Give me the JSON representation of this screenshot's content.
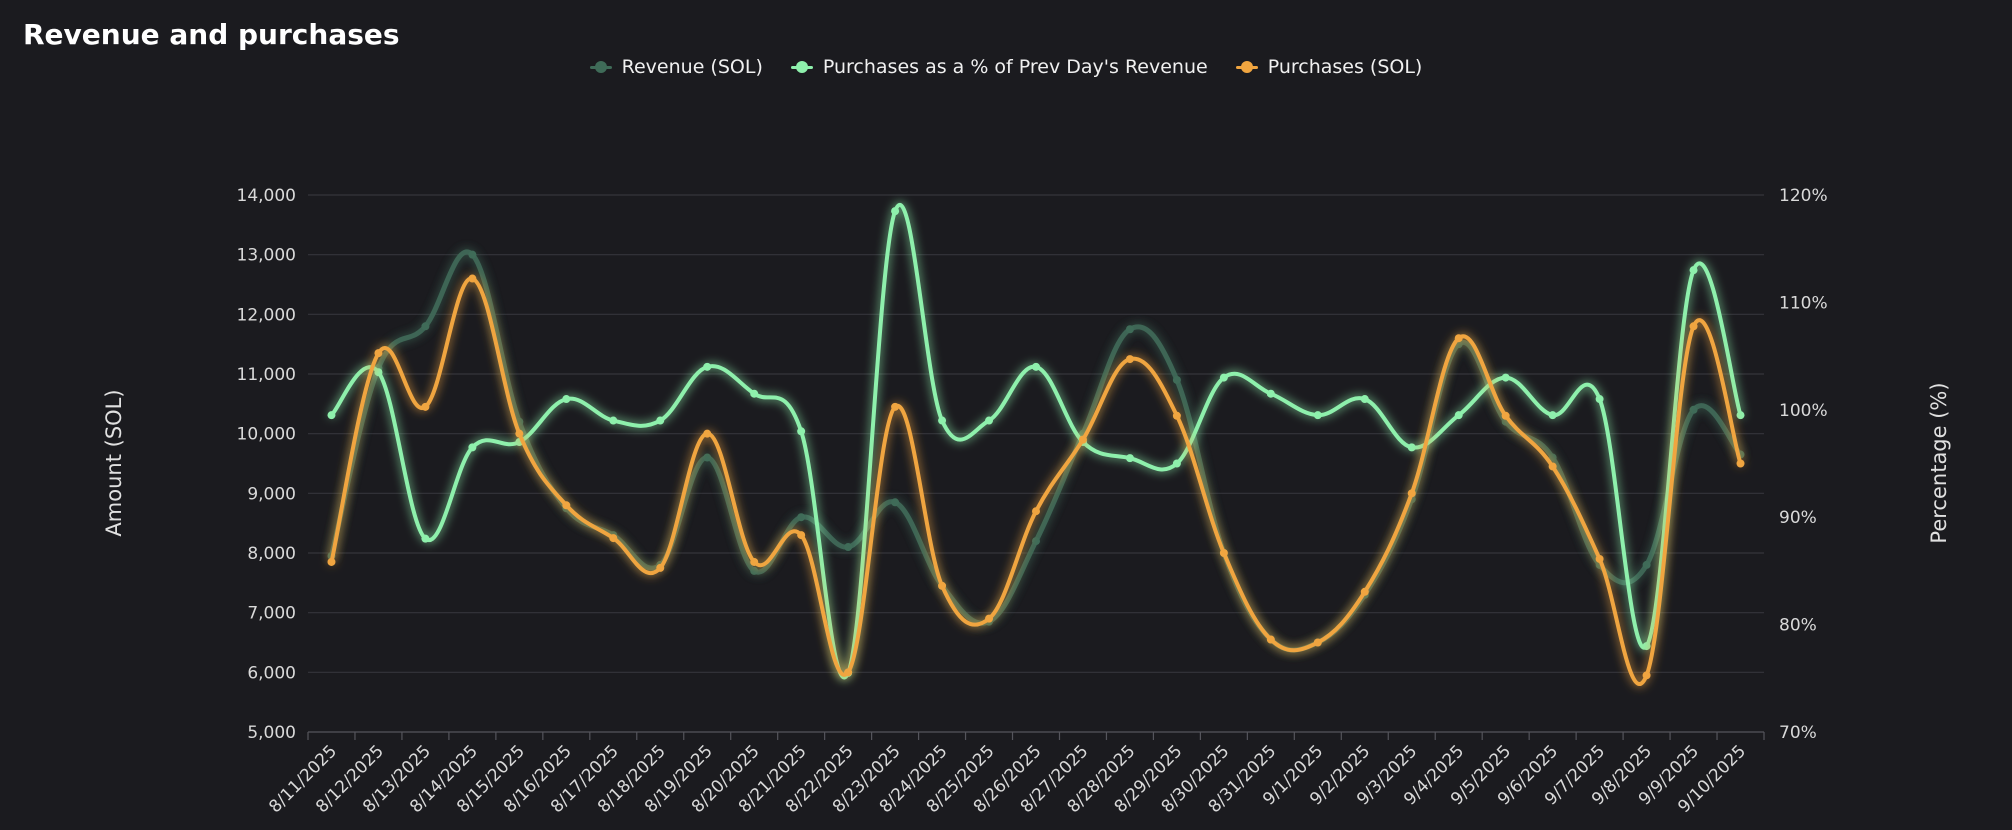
{
  "chart_data": {
    "type": "line",
    "title": "Revenue and purchases",
    "ylabel_left": "Amount (SOL)",
    "ylabel_right": "Percentage (%)",
    "ylim_left": [
      5000,
      14000
    ],
    "ylim_right": [
      70,
      120
    ],
    "yticks_left": [
      "5,000",
      "6,000",
      "7,000",
      "8,000",
      "9,000",
      "10,000",
      "11,000",
      "12,000",
      "13,000",
      "14,000"
    ],
    "yticks_right": [
      "70%",
      "80%",
      "90%",
      "100%",
      "110%",
      "120%"
    ],
    "grid": true,
    "legend_position": "top-center",
    "categories": [
      "8/11/2025",
      "8/12/2025",
      "8/13/2025",
      "8/14/2025",
      "8/15/2025",
      "8/16/2025",
      "8/17/2025",
      "8/18/2025",
      "8/19/2025",
      "8/20/2025",
      "8/21/2025",
      "8/22/2025",
      "8/23/2025",
      "8/24/2025",
      "8/25/2025",
      "8/26/2025",
      "8/27/2025",
      "8/28/2025",
      "8/29/2025",
      "8/30/2025",
      "8/31/2025",
      "9/1/2025",
      "9/2/2025",
      "9/3/2025",
      "9/4/2025",
      "9/5/2025",
      "9/6/2025",
      "9/7/2025",
      "9/8/2025",
      "9/9/2025",
      "9/10/2025"
    ],
    "series": [
      {
        "name": "Revenue (SOL)",
        "axis": "left",
        "color": "#3f6b58",
        "values": [
          7950,
          11100,
          11800,
          13000,
          10200,
          8750,
          8300,
          7800,
          9600,
          7700,
          8600,
          8100,
          8850,
          7450,
          6850,
          8200,
          10000,
          11750,
          10900,
          8000,
          6550,
          6500,
          7300,
          8900,
          11500,
          10200,
          9600,
          7800,
          7800,
          10400,
          9650
        ]
      },
      {
        "name": "Purchases as a % of Prev Day's Revenue",
        "axis": "right",
        "color": "#8ef0ac",
        "values": [
          99.5,
          103.5,
          88,
          96.5,
          97,
          101,
          99,
          99,
          104,
          101.5,
          98,
          75.5,
          118.5,
          99,
          99,
          104,
          97,
          95.5,
          95,
          103,
          101.5,
          99.5,
          101,
          96.5,
          99.5,
          103,
          99.5,
          101,
          78,
          113,
          99.5
        ]
      },
      {
        "name": "Purchases (SOL)",
        "axis": "left",
        "color": "#f0a540",
        "values": [
          7850,
          11350,
          10450,
          12600,
          10000,
          8800,
          8250,
          7750,
          10000,
          7850,
          8300,
          6000,
          10450,
          7450,
          6900,
          8700,
          9900,
          11250,
          10300,
          8000,
          6550,
          6500,
          7350,
          9000,
          11600,
          10300,
          9450,
          7900,
          5950,
          11800,
          9500
        ]
      }
    ]
  }
}
